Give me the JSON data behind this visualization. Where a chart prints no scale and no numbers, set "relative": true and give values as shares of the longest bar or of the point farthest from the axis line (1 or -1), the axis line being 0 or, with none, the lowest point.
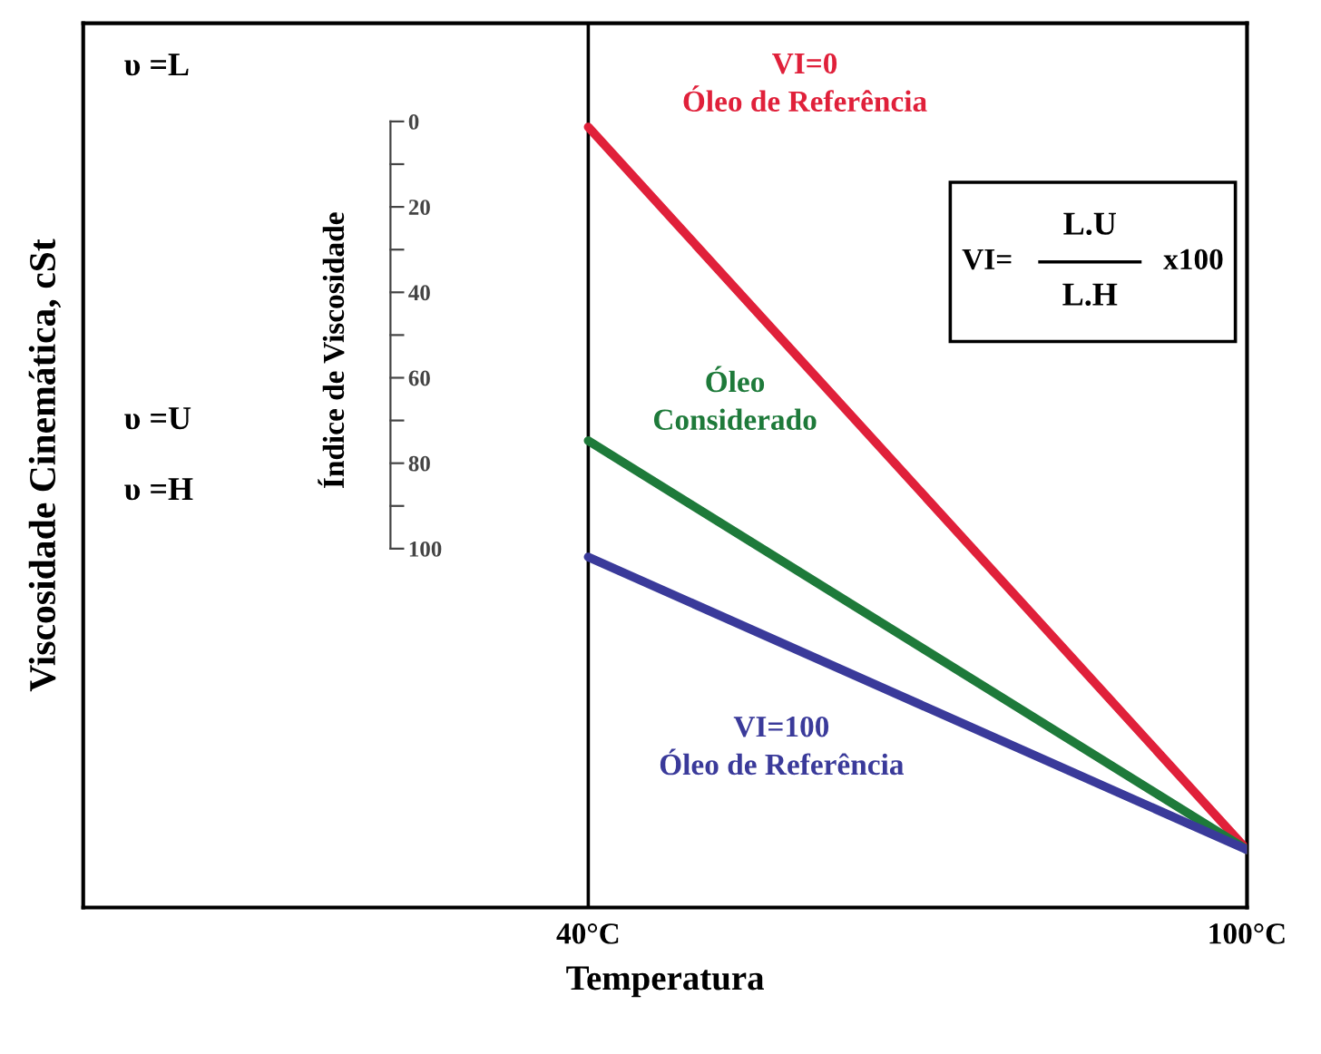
{
  "chart_data": {
    "type": "line",
    "relative": true,
    "xlabel": "Temperatura",
    "ylabel": "Viscosidade Cinemática, cSt",
    "y2label": "Índice de Viscosidade",
    "x": [
      40,
      100
    ],
    "series": [
      {
        "name": "VI=0\nÓleo de Referência",
        "color": "#e0203a",
        "values": [
          1,
          0.074
        ]
      },
      {
        "name": "Óleo\nConsiderado",
        "color": "#1e7a3a",
        "values": [
          0.598,
          0.074
        ]
      },
      {
        "name": "VI=100\nÓleo de Referência",
        "color": "#3a3a9a",
        "values": [
          0.449,
          0.074
        ]
      }
    ],
    "xlim": [
      -6,
      100
    ],
    "xticks": [
      {
        "value": 40,
        "label": "40°C"
      },
      {
        "value": 100,
        "label": "100°C"
      }
    ],
    "y2lim": [
      184,
      -23
    ],
    "y2ticks": [
      0,
      20,
      40,
      60,
      80,
      100
    ],
    "ref_lines": [
      {
        "axis": "x",
        "value": 40,
        "label": null,
        "color": "#000000"
      }
    ],
    "annotations": [
      "υ =L",
      "υ =U",
      "υ =H",
      "VI=",
      "L.U",
      "L.H",
      "x100"
    ],
    "legend": false,
    "marker": "none",
    "line_style": "solid"
  }
}
